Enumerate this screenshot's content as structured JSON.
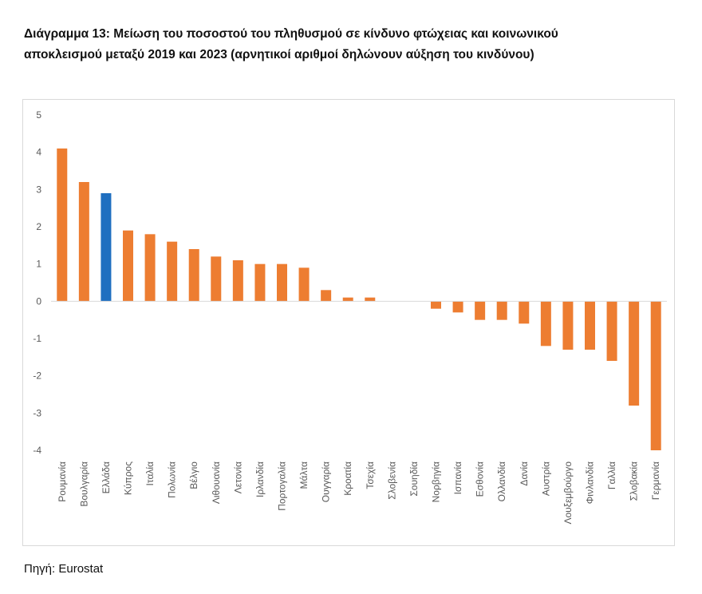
{
  "title": "Διάγραμμα 13: Μείωση του ποσοστού του πληθυσμού σε κίνδυνο φτώχειας και κοινωνικού αποκλεισμού μεταξύ 2019 και 2023 (αρνητικοί αριθμοί δηλώνουν αύξηση του κινδύνου)",
  "source": "Πηγή: Eurostat",
  "colors": {
    "default_bar": "#ED7D31",
    "highlight_bar": "#1F6FC0"
  },
  "chart_data": {
    "type": "bar",
    "title": "Διάγραμμα 13: Μείωση του ποσοστού του πληθυσμού σε κίνδυνο φτώχειας και κοινωνικού αποκλεισμού μεταξύ 2019 και 2023 (αρνητικοί αριθμοί δηλώνουν αύξηση του κινδύνου)",
    "xlabel": "",
    "ylabel": "",
    "ylim": [
      -4,
      5
    ],
    "yticks": [
      5,
      4,
      3,
      2,
      1,
      0,
      -1,
      -2,
      -3,
      -4
    ],
    "grid": false,
    "highlight": "Ελλάδα",
    "categories": [
      "Ρουμανία",
      "Βουλγαρία",
      "Ελλάδα",
      "Κύπρος",
      "Ιταλία",
      "Πολωνία",
      "Βέλγιο",
      "Λιθουανία",
      "Λετονία",
      "Ιρλανδία",
      "Πορτογαλία",
      "Μάλτα",
      "Ουγγαρία",
      "Κροατία",
      "Τσεχία",
      "Σλοβενία",
      "Σουηδία",
      "Νορβηγία",
      "Ισπανία",
      "Εσθονία",
      "Ολλανδία",
      "Δανία",
      "Αυστρία",
      "Λουξεμβούργο",
      "Φινλανδία",
      "Γαλλία",
      "Σλοβακία",
      "Γερμανία"
    ],
    "values": [
      4.1,
      3.2,
      2.9,
      1.9,
      1.8,
      1.6,
      1.4,
      1.2,
      1.1,
      1.0,
      1.0,
      0.9,
      0.3,
      0.1,
      0.1,
      0.0,
      0.0,
      -0.2,
      -0.3,
      -0.5,
      -0.5,
      -0.6,
      -1.2,
      -1.3,
      -1.3,
      -1.6,
      -2.8,
      -4.0
    ]
  }
}
